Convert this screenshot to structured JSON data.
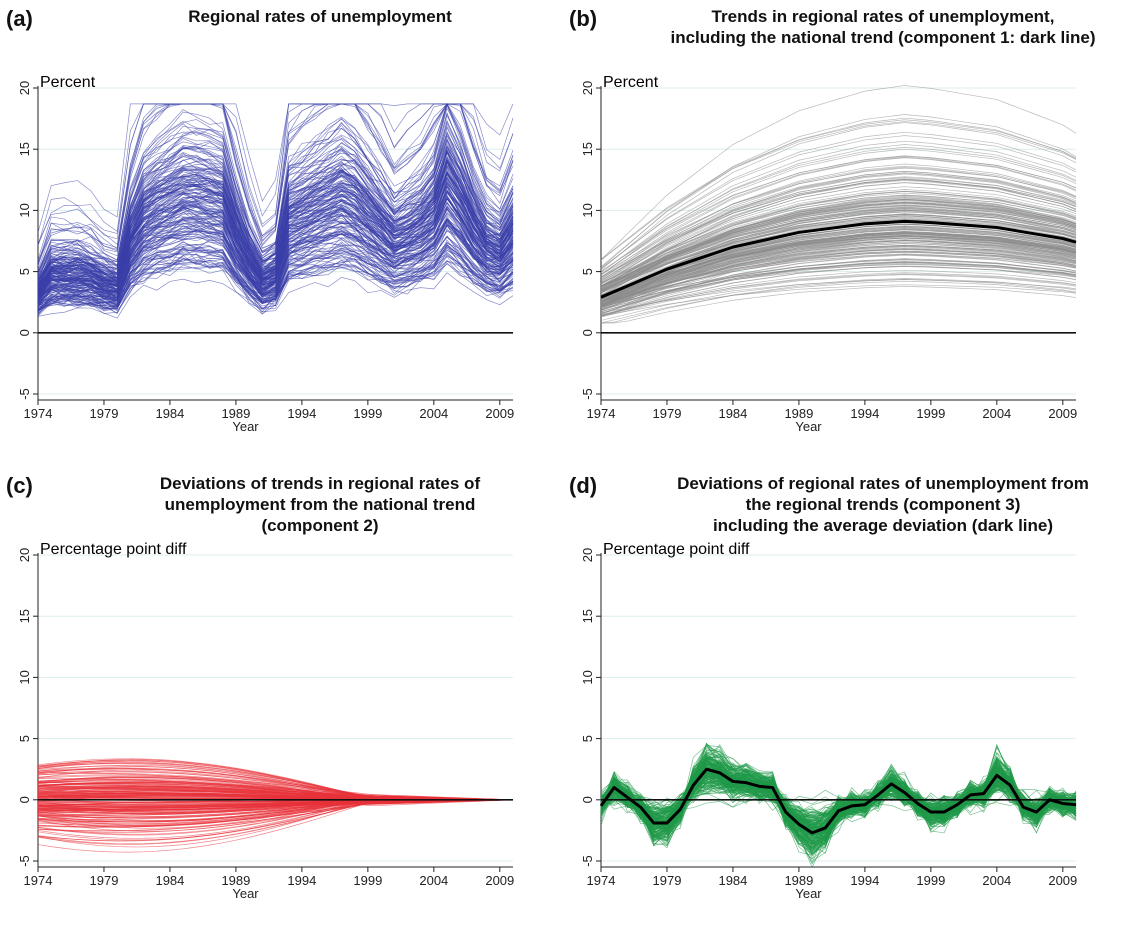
{
  "panels": [
    {
      "label": "(a)",
      "title_lines": [
        "Regional rates of unemployment"
      ],
      "y_label": "Percent",
      "color": "#3a3fa8"
    },
    {
      "label": "(b)",
      "title_lines": [
        "Trends in regional rates of unemployment,",
        "including the national trend (component 1: dark line)"
      ],
      "y_label": "Percent",
      "color": "#8c8c8c"
    },
    {
      "label": "(c)",
      "title_lines": [
        "Deviations of trends in regional rates of",
        "unemployment from the national trend",
        "(component 2)"
      ],
      "y_label": "Percentage point diff",
      "color": "#e8323a"
    },
    {
      "label": "(d)",
      "title_lines": [
        "Deviations of regional rates of unemployment from",
        "the regional trends (component 3)",
        "including the average deviation (dark line)"
      ],
      "y_label": "Percentage point diff",
      "color": "#1f9a4a"
    }
  ],
  "chart_data": [
    {
      "type": "line",
      "panel": "(a)",
      "title": "Regional rates of unemployment",
      "ylabel": "Percent",
      "xlabel": "Year",
      "xlim": [
        1974,
        2010
      ],
      "ylim": [
        -5,
        20
      ],
      "x_ticks": [
        1974,
        1979,
        1984,
        1989,
        1994,
        1999,
        2004,
        2009
      ],
      "y_ticks": [
        -5,
        0,
        5,
        10,
        15,
        20
      ],
      "grid": true,
      "series_count": 200,
      "series": [
        {
          "name": "",
          "x": [
            1974,
            1975,
            1976,
            1977,
            1978,
            1979,
            1980,
            1981,
            1982,
            1983,
            1984,
            1985,
            1986,
            1987,
            1988,
            1989,
            1990,
            1991,
            1992,
            1993,
            1994,
            1995,
            1996,
            1997,
            1998,
            1999,
            2000,
            2001,
            2002,
            2003,
            2004,
            2005,
            2006,
            2007,
            2008,
            2009,
            2010
          ],
          "y": [
            3.0,
            4.5,
            4.5,
            4.5,
            4.3,
            3.8,
            3.5,
            7.0,
            8.8,
            9.5,
            10.0,
            10.5,
            10.5,
            10.3,
            10.0,
            7.5,
            5.5,
            4.0,
            4.5,
            8.5,
            9.0,
            9.5,
            10.0,
            10.5,
            10.0,
            9.0,
            8.0,
            7.0,
            7.5,
            8.0,
            9.0,
            11.5,
            10.0,
            8.0,
            6.5,
            6.0,
            7.5
          ]
        }
      ],
      "reference_line": 0
    },
    {
      "type": "line",
      "panel": "(b)",
      "title": "Trends in regional rates of unemployment, including the national trend (component 1: dark line)",
      "ylabel": "Percent",
      "xlabel": "Year",
      "xlim": [
        1974,
        2010
      ],
      "ylim": [
        -5,
        20
      ],
      "x_ticks": [
        1974,
        1979,
        1984,
        1989,
        1994,
        1999,
        2004,
        2009
      ],
      "y_ticks": [
        -5,
        0,
        5,
        10,
        15,
        20
      ],
      "grid": true,
      "series_count": 200,
      "series": [
        {
          "name": "",
          "x": [
            1974,
            1979,
            1984,
            1989,
            1994,
            1997,
            1999,
            2004,
            2009,
            2010
          ],
          "y": [
            2.9,
            5.2,
            7.0,
            8.2,
            8.9,
            9.1,
            9.0,
            8.6,
            7.7,
            7.4
          ]
        }
      ],
      "reference_line": 0
    },
    {
      "type": "line",
      "panel": "(c)",
      "title": "Deviations of trends in regional rates of unemployment from the national trend (component 2)",
      "ylabel": "Percentage point diff",
      "xlabel": "Year",
      "xlim": [
        1974,
        2010
      ],
      "ylim": [
        -5,
        20
      ],
      "x_ticks": [
        1974,
        1979,
        1984,
        1989,
        1994,
        1999,
        2004,
        2009
      ],
      "y_ticks": [
        -5,
        0,
        5,
        10,
        15,
        20
      ],
      "grid": true,
      "series_count": 200,
      "series": [
        {
          "name": "",
          "x": [
            1974,
            2010
          ],
          "y": [
            0,
            0
          ]
        }
      ],
      "reference_line": 0
    },
    {
      "type": "line",
      "panel": "(d)",
      "title": "Deviations of regional rates of unemployment from the regional trends (component 3) including the average deviation (dark line)",
      "ylabel": "Percentage point diff",
      "xlabel": "Year",
      "xlim": [
        1974,
        2010
      ],
      "ylim": [
        -5,
        20
      ],
      "x_ticks": [
        1974,
        1979,
        1984,
        1989,
        1994,
        1999,
        2004,
        2009
      ],
      "y_ticks": [
        -5,
        0,
        5,
        10,
        15,
        20
      ],
      "grid": true,
      "series_count": 200,
      "series": [
        {
          "name": "",
          "x": [
            1974,
            1975,
            1976,
            1977,
            1978,
            1979,
            1980,
            1981,
            1982,
            1983,
            1984,
            1985,
            1986,
            1987,
            1988,
            1989,
            1990,
            1991,
            1992,
            1993,
            1994,
            1995,
            1996,
            1997,
            1998,
            1999,
            2000,
            2001,
            2002,
            2003,
            2004,
            2005,
            2006,
            2007,
            2008,
            2009,
            2010
          ],
          "y": [
            -0.5,
            1.0,
            0.2,
            -0.6,
            -1.9,
            -1.9,
            -0.8,
            1.2,
            2.5,
            2.2,
            1.5,
            1.4,
            1.1,
            1.0,
            -1.0,
            -2.0,
            -2.7,
            -2.3,
            -0.9,
            -0.5,
            -0.4,
            0.4,
            1.3,
            0.6,
            -0.3,
            -1.0,
            -1.0,
            -0.4,
            0.4,
            0.5,
            2.0,
            1.2,
            -0.6,
            -1.0,
            0.0,
            -0.3,
            -0.4
          ]
        }
      ],
      "reference_line": 0
    }
  ]
}
